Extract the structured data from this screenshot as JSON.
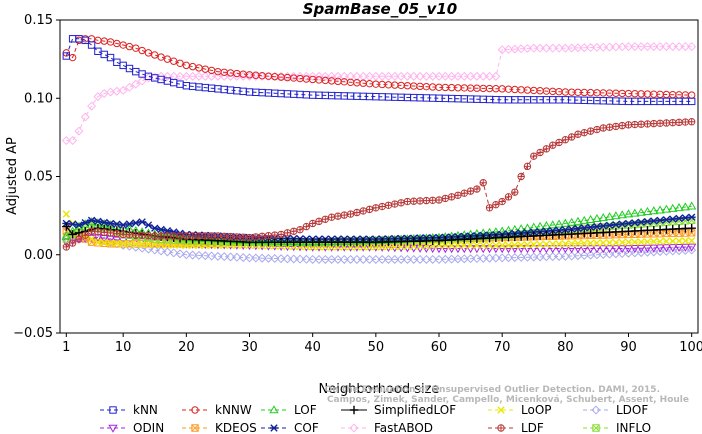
{
  "chart_data": {
    "type": "line",
    "title": "SpamBase_05_v10",
    "xlabel": "Neighborhood size",
    "ylabel": "Adjusted AP",
    "xlim": [
      0,
      101
    ],
    "ylim": [
      -0.05,
      0.15
    ],
    "xticks": [
      "1",
      "10",
      "20",
      "30",
      "40",
      "50",
      "60",
      "70",
      "80",
      "90",
      "100"
    ],
    "yticks": [
      "−0.05",
      "0.00",
      "0.05",
      "0.10",
      "0.15"
    ],
    "legend_position": "bottom",
    "credit": [
      "Campos, Zimek, Sander, Campello, Micenková, Schubert, Assent, Houle",
      "On the Evaluation of Unsupervised Outlier Detection. DAMI, 2015."
    ],
    "series": [
      {
        "name": "kNN",
        "color": "#2222cc",
        "marker": "square",
        "dash": "4,3",
        "points": [
          [
            1,
            0.127
          ],
          [
            2,
            0.138
          ],
          [
            3,
            0.138
          ],
          [
            4,
            0.137
          ],
          [
            5,
            0.134
          ],
          [
            6,
            0.13
          ],
          [
            7,
            0.128
          ],
          [
            8,
            0.126
          ],
          [
            9,
            0.123
          ],
          [
            10,
            0.121
          ],
          [
            11,
            0.119
          ],
          [
            12,
            0.117
          ],
          [
            14,
            0.114
          ],
          [
            17,
            0.111
          ],
          [
            20,
            0.108
          ],
          [
            25,
            0.106
          ],
          [
            30,
            0.104
          ],
          [
            40,
            0.102
          ],
          [
            50,
            0.101
          ],
          [
            60,
            0.1
          ],
          [
            70,
            0.099
          ],
          [
            80,
            0.099
          ],
          [
            90,
            0.098
          ],
          [
            100,
            0.098
          ]
        ]
      },
      {
        "name": "kNNW",
        "color": "#dd2222",
        "marker": "circle",
        "dash": "4,3",
        "points": [
          [
            1,
            0.129
          ],
          [
            2,
            0.126
          ],
          [
            3,
            0.137
          ],
          [
            4,
            0.138
          ],
          [
            5,
            0.138
          ],
          [
            6,
            0.137
          ],
          [
            8,
            0.136
          ],
          [
            10,
            0.134
          ],
          [
            12,
            0.132
          ],
          [
            14,
            0.129
          ],
          [
            17,
            0.125
          ],
          [
            20,
            0.121
          ],
          [
            25,
            0.117
          ],
          [
            30,
            0.115
          ],
          [
            40,
            0.112
          ],
          [
            50,
            0.109
          ],
          [
            60,
            0.107
          ],
          [
            70,
            0.106
          ],
          [
            80,
            0.104
          ],
          [
            90,
            0.103
          ],
          [
            100,
            0.102
          ]
        ]
      },
      {
        "name": "LOF",
        "color": "#22cc22",
        "marker": "triangle",
        "dash": "4,3",
        "points": [
          [
            1,
            0.012
          ],
          [
            3,
            0.018
          ],
          [
            5,
            0.021
          ],
          [
            8,
            0.019
          ],
          [
            10,
            0.017
          ],
          [
            15,
            0.013
          ],
          [
            20,
            0.011
          ],
          [
            30,
            0.009
          ],
          [
            40,
            0.008
          ],
          [
            50,
            0.009
          ],
          [
            60,
            0.011
          ],
          [
            70,
            0.015
          ],
          [
            80,
            0.02
          ],
          [
            90,
            0.026
          ],
          [
            100,
            0.031
          ]
        ]
      },
      {
        "name": "SimplifiedLOF",
        "color": "#000000",
        "marker": "plus",
        "dash": "",
        "points": [
          [
            1,
            0.018
          ],
          [
            2,
            0.013
          ],
          [
            4,
            0.015
          ],
          [
            6,
            0.017
          ],
          [
            8,
            0.016
          ],
          [
            10,
            0.015
          ],
          [
            15,
            0.012
          ],
          [
            20,
            0.01
          ],
          [
            30,
            0.008
          ],
          [
            40,
            0.008
          ],
          [
            50,
            0.008
          ],
          [
            60,
            0.009
          ],
          [
            70,
            0.011
          ],
          [
            80,
            0.013
          ],
          [
            90,
            0.015
          ],
          [
            100,
            0.017
          ]
        ]
      },
      {
        "name": "LoOP",
        "color": "#e8e800",
        "marker": "x",
        "dash": "4,3",
        "points": [
          [
            1,
            0.026
          ],
          [
            2,
            0.02
          ],
          [
            4,
            0.012
          ],
          [
            6,
            0.008
          ],
          [
            10,
            0.007
          ],
          [
            20,
            0.006
          ],
          [
            30,
            0.006
          ],
          [
            40,
            0.005
          ],
          [
            50,
            0.005
          ],
          [
            60,
            0.006
          ],
          [
            70,
            0.006
          ],
          [
            80,
            0.007
          ],
          [
            90,
            0.008
          ],
          [
            100,
            0.009
          ]
        ]
      },
      {
        "name": "LDOF",
        "color": "#aaaaee",
        "marker": "diamond",
        "dash": "4,3",
        "points": [
          [
            1,
            0.01
          ],
          [
            3,
            0.012
          ],
          [
            6,
            0.01
          ],
          [
            10,
            0.006
          ],
          [
            15,
            0.003
          ],
          [
            20,
            0.0
          ],
          [
            30,
            -0.002
          ],
          [
            40,
            -0.003
          ],
          [
            50,
            -0.003
          ],
          [
            60,
            -0.003
          ],
          [
            70,
            -0.002
          ],
          [
            80,
            -0.001
          ],
          [
            90,
            0.001
          ],
          [
            100,
            0.003
          ]
        ]
      },
      {
        "name": "ODIN",
        "color": "#aa22dd",
        "marker": "triangle-down",
        "dash": "4,3",
        "points": [
          [
            1,
            0.008
          ],
          [
            3,
            0.01
          ],
          [
            6,
            0.011
          ],
          [
            10,
            0.009
          ],
          [
            15,
            0.008
          ],
          [
            20,
            0.007
          ],
          [
            30,
            0.006
          ],
          [
            40,
            0.005
          ],
          [
            50,
            0.005
          ],
          [
            60,
            0.004
          ],
          [
            70,
            0.004
          ],
          [
            80,
            0.004
          ],
          [
            90,
            0.004
          ],
          [
            100,
            0.005
          ]
        ]
      },
      {
        "name": "KDEOS",
        "color": "#ff9922",
        "marker": "square-x",
        "dash": "4,3",
        "points": [
          [
            1,
            0.015
          ],
          [
            3,
            0.012
          ],
          [
            5,
            0.008
          ],
          [
            8,
            0.007
          ],
          [
            10,
            0.007
          ],
          [
            20,
            0.007
          ],
          [
            30,
            0.008
          ],
          [
            40,
            0.008
          ],
          [
            50,
            0.009
          ],
          [
            60,
            0.01
          ],
          [
            70,
            0.011
          ],
          [
            80,
            0.012
          ],
          [
            90,
            0.013
          ],
          [
            100,
            0.014
          ]
        ]
      },
      {
        "name": "COF",
        "color": "#112299",
        "marker": "star",
        "dash": "4,3",
        "points": [
          [
            1,
            0.02
          ],
          [
            3,
            0.019
          ],
          [
            5,
            0.022
          ],
          [
            8,
            0.02
          ],
          [
            10,
            0.019
          ],
          [
            13,
            0.021
          ],
          [
            15,
            0.017
          ],
          [
            20,
            0.013
          ],
          [
            30,
            0.011
          ],
          [
            40,
            0.01
          ],
          [
            50,
            0.01
          ],
          [
            60,
            0.011
          ],
          [
            70,
            0.013
          ],
          [
            80,
            0.016
          ],
          [
            90,
            0.02
          ],
          [
            100,
            0.024
          ]
        ]
      },
      {
        "name": "FastABOD",
        "color": "#ffb4ee",
        "marker": "diamond",
        "dash": "4,3",
        "points": [
          [
            1,
            0.073
          ],
          [
            2,
            0.073
          ],
          [
            3,
            0.079
          ],
          [
            4,
            0.088
          ],
          [
            5,
            0.095
          ],
          [
            6,
            0.101
          ],
          [
            7,
            0.103
          ],
          [
            8,
            0.104
          ],
          [
            10,
            0.105
          ],
          [
            12,
            0.109
          ],
          [
            14,
            0.113
          ],
          [
            16,
            0.114
          ],
          [
            20,
            0.114
          ],
          [
            30,
            0.114
          ],
          [
            40,
            0.114
          ],
          [
            50,
            0.114
          ],
          [
            60,
            0.114
          ],
          [
            69,
            0.114
          ],
          [
            70,
            0.131
          ],
          [
            75,
            0.132
          ],
          [
            80,
            0.132
          ],
          [
            90,
            0.133
          ],
          [
            100,
            0.133
          ]
        ]
      },
      {
        "name": "LDF",
        "color": "#b83838",
        "marker": "circle-plus",
        "dash": "4,3",
        "points": [
          [
            1,
            0.005
          ],
          [
            3,
            0.01
          ],
          [
            5,
            0.015
          ],
          [
            8,
            0.014
          ],
          [
            10,
            0.013
          ],
          [
            15,
            0.012
          ],
          [
            20,
            0.012
          ],
          [
            25,
            0.012
          ],
          [
            30,
            0.011
          ],
          [
            35,
            0.013
          ],
          [
            38,
            0.016
          ],
          [
            40,
            0.02
          ],
          [
            43,
            0.024
          ],
          [
            46,
            0.026
          ],
          [
            50,
            0.03
          ],
          [
            55,
            0.034
          ],
          [
            60,
            0.035
          ],
          [
            63,
            0.038
          ],
          [
            66,
            0.042
          ],
          [
            67,
            0.046
          ],
          [
            68,
            0.03
          ],
          [
            70,
            0.034
          ],
          [
            72,
            0.04
          ],
          [
            73,
            0.05
          ],
          [
            75,
            0.063
          ],
          [
            78,
            0.07
          ],
          [
            82,
            0.077
          ],
          [
            86,
            0.081
          ],
          [
            90,
            0.083
          ],
          [
            95,
            0.084
          ],
          [
            100,
            0.085
          ]
        ]
      },
      {
        "name": "INFLO",
        "color": "#88dd33",
        "marker": "square-x",
        "dash": "4,3",
        "points": [
          [
            1,
            0.01
          ],
          [
            3,
            0.016
          ],
          [
            5,
            0.018
          ],
          [
            8,
            0.016
          ],
          [
            10,
            0.013
          ],
          [
            15,
            0.01
          ],
          [
            20,
            0.009
          ],
          [
            30,
            0.008
          ],
          [
            40,
            0.008
          ],
          [
            50,
            0.009
          ],
          [
            60,
            0.01
          ],
          [
            70,
            0.012
          ],
          [
            80,
            0.016
          ],
          [
            90,
            0.019
          ],
          [
            100,
            0.022
          ]
        ]
      }
    ]
  }
}
